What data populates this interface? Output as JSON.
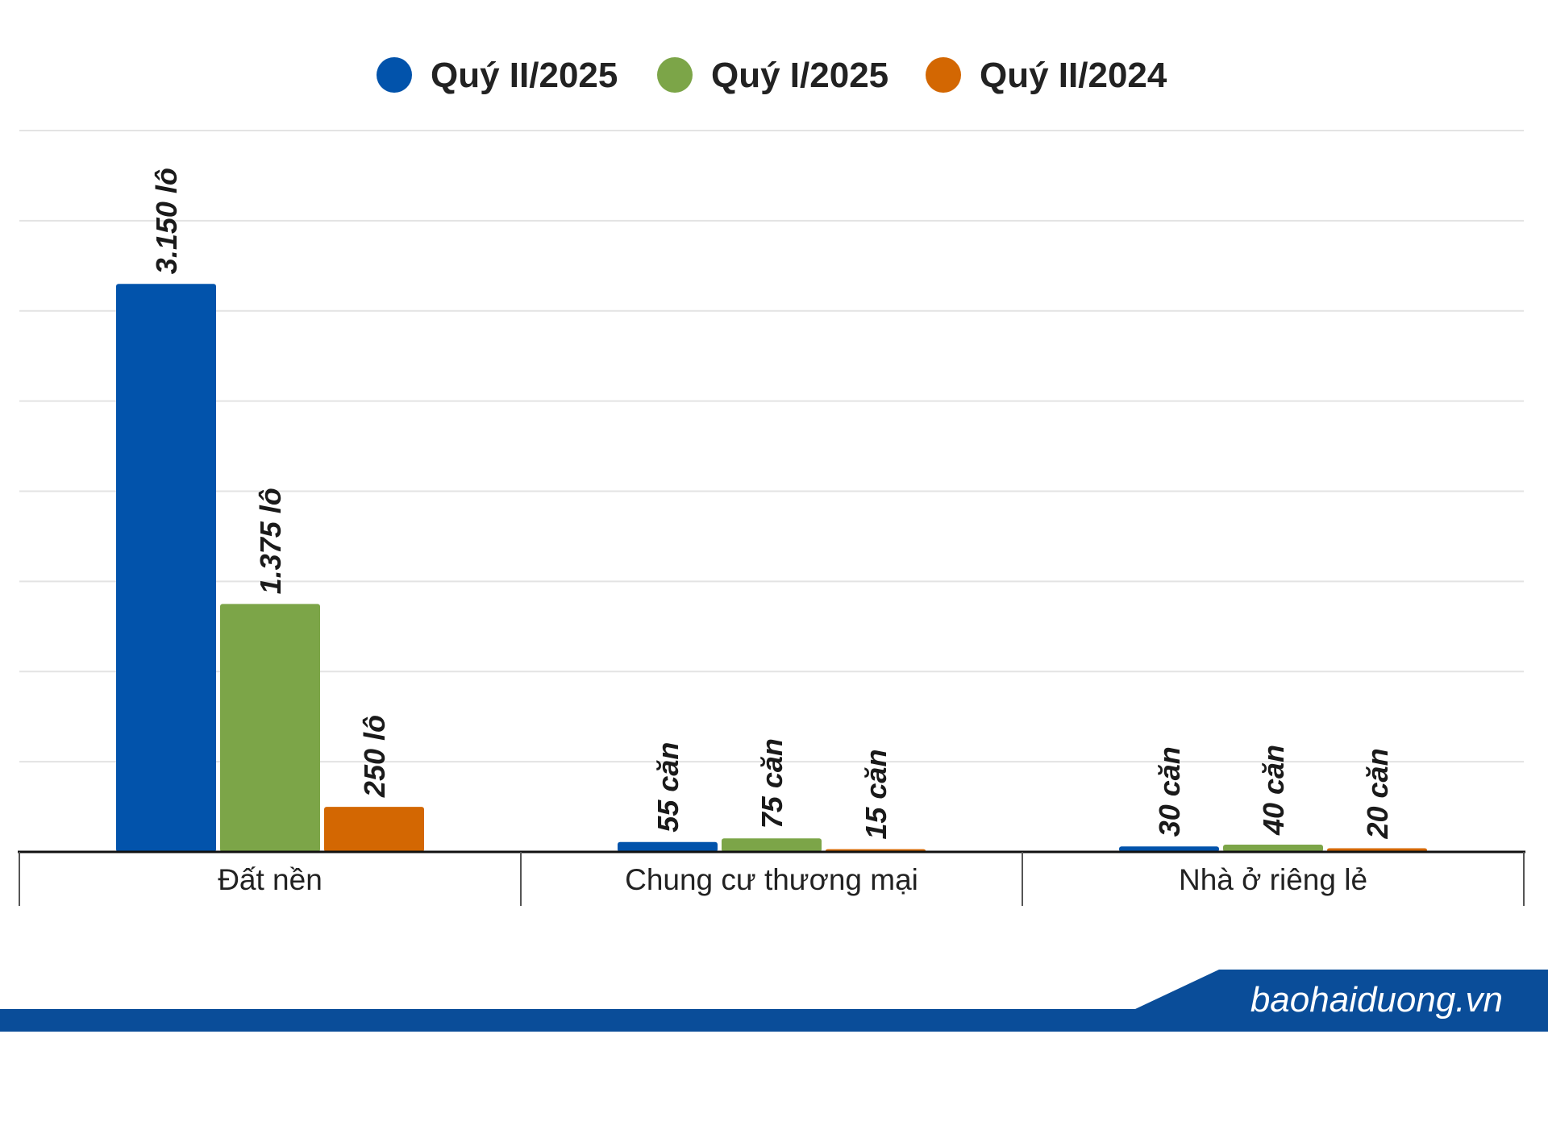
{
  "chart_data": {
    "type": "bar",
    "categories": [
      "Đất nền",
      "Chung cư thương mại",
      "Nhà ở riêng lẻ"
    ],
    "series": [
      {
        "name": "Quý II/2025",
        "color": "#0253ab",
        "values": [
          3150,
          55,
          30
        ],
        "labels": [
          "3.150 lô",
          "55 căn",
          "30 căn"
        ]
      },
      {
        "name": "Quý I/2025",
        "color": "#7ca548",
        "values": [
          1375,
          75,
          40
        ],
        "labels": [
          "1.375 lô",
          "75 căn",
          "40 căn"
        ]
      },
      {
        "name": "Quý II/2024",
        "color": "#d36702",
        "values": [
          250,
          15,
          20
        ],
        "labels": [
          "250 lô",
          "15 căn",
          "20 căn"
        ]
      }
    ],
    "legend_position": "top-center",
    "grid": true,
    "ylim": [
      0,
      4000
    ]
  },
  "footer": {
    "brand": "baohaiduong.vn",
    "bar_color": "#0a4d99"
  }
}
